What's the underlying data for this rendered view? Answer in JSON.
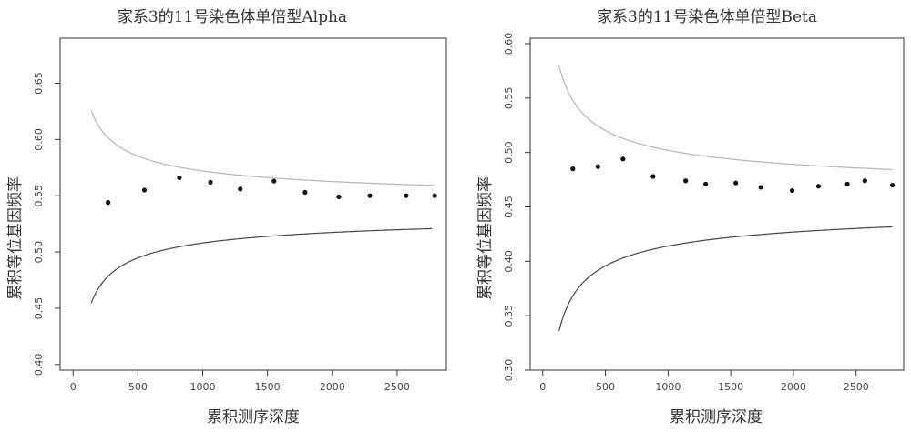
{
  "chart_data": [
    {
      "type": "scatter",
      "title": "家系3的11号染色体单倍型Alpha",
      "xlabel": "累积测序深度",
      "ylabel": "累积等位基因频率",
      "xlim": [
        -100,
        2880
      ],
      "ylim": [
        0.395,
        0.69
      ],
      "xticks": [
        "0",
        "500",
        "1000",
        "1500",
        "2000",
        "2500"
      ],
      "xtick_values": [
        0,
        500,
        1000,
        1500,
        2000,
        2500
      ],
      "yticks": [
        "0.40",
        "0.45",
        "0.50",
        "0.55",
        "0.60",
        "0.65"
      ],
      "ytick_values": [
        0.4,
        0.45,
        0.5,
        0.55,
        0.6,
        0.65
      ],
      "x": [
        270,
        550,
        820,
        1060,
        1290,
        1550,
        1790,
        2050,
        2290,
        2570,
        2790
      ],
      "y": [
        0.544,
        0.555,
        0.566,
        0.562,
        0.556,
        0.563,
        0.553,
        0.549,
        0.55,
        0.55,
        0.55
      ],
      "bounds": {
        "center": 0.54,
        "k": 0.032,
        "x_start": 140,
        "x_end": 2790,
        "x_end_lower": 2770
      },
      "colors": {
        "points": "#111111",
        "upper": "#b5b5b5",
        "lower": "#444444",
        "frame": "#333333"
      },
      "grid": false
    },
    {
      "type": "scatter",
      "title": "家系3的11号染色体单倍型Beta",
      "xlabel": "累积测序深度",
      "ylabel": "累积等位基因频率",
      "xlim": [
        -100,
        2880
      ],
      "ylim": [
        0.3,
        0.605
      ],
      "xticks": [
        "0",
        "500",
        "1000",
        "1500",
        "2000",
        "2500"
      ],
      "xtick_values": [
        0,
        500,
        1000,
        1500,
        2000,
        2500
      ],
      "yticks": [
        "0.30",
        "0.35",
        "0.40",
        "0.45",
        "0.50",
        "0.55",
        "0.60"
      ],
      "ytick_values": [
        0.3,
        0.35,
        0.4,
        0.45,
        0.5,
        0.55,
        0.6
      ],
      "x": [
        240,
        440,
        640,
        880,
        1140,
        1300,
        1540,
        1740,
        1990,
        2200,
        2430,
        2570,
        2790
      ],
      "y": [
        0.485,
        0.487,
        0.494,
        0.478,
        0.474,
        0.471,
        0.472,
        0.468,
        0.465,
        0.469,
        0.471,
        0.474,
        0.47
      ],
      "bounds": {
        "center": 0.458,
        "k": 0.044,
        "x_start": 130,
        "x_end": 2790,
        "x_end_lower": 2790
      },
      "colors": {
        "points": "#111111",
        "upper": "#b5b5b5",
        "lower": "#444444",
        "frame": "#333333"
      },
      "grid": false
    }
  ]
}
